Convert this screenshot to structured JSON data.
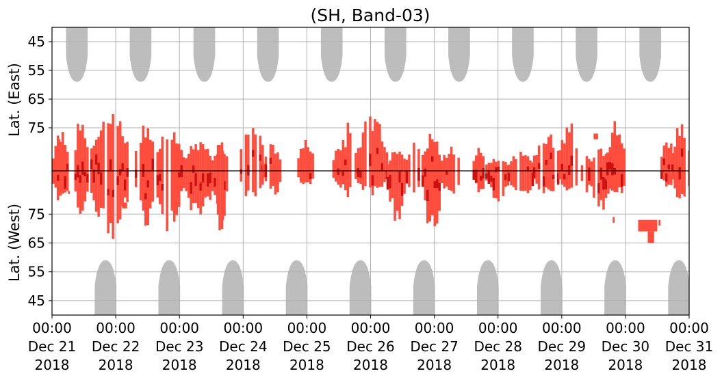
{
  "chart_data": {
    "type": "heatmap",
    "title": "(SH, Band-03)",
    "ylabel_top": "Lat. (East)",
    "ylabel_bottom": "Lat. (West)",
    "y_axis": {
      "lim_east": [
        40,
        90
      ],
      "lim_west": [
        90,
        40
      ],
      "ticks_east": [
        45,
        55,
        65,
        75
      ],
      "ticks_west": [
        75,
        65,
        55,
        45
      ]
    },
    "x_axis": {
      "range": [
        "2018-12-21 00:00",
        "2018-12-31 00:00"
      ],
      "tick_labels": [
        {
          "time": "00:00",
          "date": "Dec 21",
          "year": "2018"
        },
        {
          "time": "00:00",
          "date": "Dec 22",
          "year": "2018"
        },
        {
          "time": "00:00",
          "date": "Dec 23",
          "year": "2018"
        },
        {
          "time": "00:00",
          "date": "Dec 24",
          "year": "2018"
        },
        {
          "time": "00:00",
          "date": "Dec 25",
          "year": "2018"
        },
        {
          "time": "00:00",
          "date": "Dec 26",
          "year": "2018"
        },
        {
          "time": "00:00",
          "date": "Dec 27",
          "year": "2018"
        },
        {
          "time": "00:00",
          "date": "Dec 28",
          "year": "2018"
        },
        {
          "time": "00:00",
          "date": "Dec 29",
          "year": "2018"
        },
        {
          "time": "00:00",
          "date": "Dec 30",
          "year": "2018"
        },
        {
          "time": "00:00",
          "date": "Dec 31",
          "year": "2018"
        }
      ]
    },
    "grid": true,
    "colors": {
      "daylight": "#bdbdbd",
      "echo_weak": "#ff4d3d",
      "echo_strong": "#cc1010",
      "grid": "#b0b0b0",
      "frame": "#000000"
    },
    "daylight_east": [
      {
        "center_day": 0.39,
        "half_width_days": 0.17,
        "edge_lat": 59
      },
      {
        "center_day": 1.39,
        "half_width_days": 0.17,
        "edge_lat": 59
      },
      {
        "center_day": 2.39,
        "half_width_days": 0.17,
        "edge_lat": 59
      },
      {
        "center_day": 3.39,
        "half_width_days": 0.17,
        "edge_lat": 59
      },
      {
        "center_day": 4.39,
        "half_width_days": 0.17,
        "edge_lat": 59
      },
      {
        "center_day": 5.39,
        "half_width_days": 0.17,
        "edge_lat": 59
      },
      {
        "center_day": 6.39,
        "half_width_days": 0.17,
        "edge_lat": 59
      },
      {
        "center_day": 7.39,
        "half_width_days": 0.17,
        "edge_lat": 59
      },
      {
        "center_day": 8.39,
        "half_width_days": 0.17,
        "edge_lat": 59
      },
      {
        "center_day": 9.39,
        "half_width_days": 0.17,
        "edge_lat": 59
      }
    ],
    "daylight_west": [
      {
        "center_day": 0.84,
        "half_width_days": 0.17,
        "edge_lat": 59
      },
      {
        "center_day": 1.84,
        "half_width_days": 0.17,
        "edge_lat": 59
      },
      {
        "center_day": 2.84,
        "half_width_days": 0.17,
        "edge_lat": 59
      },
      {
        "center_day": 3.84,
        "half_width_days": 0.17,
        "edge_lat": 59
      },
      {
        "center_day": 4.84,
        "half_width_days": 0.17,
        "edge_lat": 59
      },
      {
        "center_day": 5.84,
        "half_width_days": 0.17,
        "edge_lat": 59
      },
      {
        "center_day": 6.84,
        "half_width_days": 0.17,
        "edge_lat": 59
      },
      {
        "center_day": 7.84,
        "half_width_days": 0.17,
        "edge_lat": 59
      },
      {
        "center_day": 8.84,
        "half_width_days": 0.17,
        "edge_lat": 59
      },
      {
        "center_day": 9.84,
        "half_width_days": 0.17,
        "edge_lat": 59
      }
    ],
    "echo_clusters": [
      {
        "start_day": 0.0,
        "end_day": 0.25,
        "east_max_lat": 76,
        "west_max_lat": 78,
        "intensity": 0.4
      },
      {
        "start_day": 0.35,
        "end_day": 0.55,
        "east_max_lat": 67,
        "west_max_lat": 72,
        "intensity": 0.6
      },
      {
        "start_day": 0.6,
        "end_day": 1.2,
        "east_max_lat": 69,
        "west_max_lat": 67,
        "intensity": 0.9
      },
      {
        "start_day": 1.3,
        "end_day": 1.6,
        "east_max_lat": 72,
        "west_max_lat": 71,
        "intensity": 0.6
      },
      {
        "start_day": 1.6,
        "end_day": 2.05,
        "east_max_lat": 76,
        "west_max_lat": 69,
        "intensity": 0.8
      },
      {
        "start_day": 2.05,
        "end_day": 2.5,
        "east_max_lat": 79,
        "west_max_lat": 72,
        "intensity": 0.7
      },
      {
        "start_day": 2.5,
        "end_day": 2.75,
        "east_max_lat": 80,
        "west_max_lat": 70,
        "intensity": 0.5
      },
      {
        "start_day": 2.55,
        "end_day": 2.7,
        "east_max_lat": 80,
        "west_max_lat": 66,
        "intensity": 0.4
      },
      {
        "start_day": 2.95,
        "end_day": 3.3,
        "east_max_lat": 69,
        "west_max_lat": 79,
        "intensity": 0.6
      },
      {
        "start_day": 3.3,
        "end_day": 3.6,
        "east_max_lat": 81,
        "west_max_lat": 84,
        "intensity": 0.3
      },
      {
        "start_day": 3.45,
        "end_day": 3.55,
        "east_max_lat": 88,
        "west_max_lat": 79,
        "intensity": 0.3
      },
      {
        "start_day": 3.85,
        "end_day": 4.1,
        "east_max_lat": 77,
        "west_max_lat": 85,
        "intensity": 0.3
      },
      {
        "start_day": 4.4,
        "end_day": 4.65,
        "east_max_lat": 79,
        "west_max_lat": 85,
        "intensity": 0.4
      },
      {
        "start_day": 4.55,
        "end_day": 4.7,
        "east_max_lat": 74,
        "west_max_lat": 80,
        "intensity": 0.4
      },
      {
        "start_day": 4.75,
        "end_day": 5.25,
        "east_max_lat": 70,
        "west_max_lat": 82,
        "intensity": 0.7
      },
      {
        "start_day": 5.25,
        "end_day": 5.55,
        "east_max_lat": 83,
        "west_max_lat": 71,
        "intensity": 0.8
      },
      {
        "start_day": 5.55,
        "end_day": 5.8,
        "east_max_lat": 79,
        "west_max_lat": 82,
        "intensity": 0.4
      },
      {
        "start_day": 5.8,
        "end_day": 6.1,
        "east_max_lat": 76,
        "west_max_lat": 68,
        "intensity": 0.8
      },
      {
        "start_day": 6.1,
        "end_day": 6.4,
        "east_max_lat": 82,
        "west_max_lat": 80,
        "intensity": 0.5
      },
      {
        "start_day": 6.6,
        "end_day": 6.8,
        "east_max_lat": 81,
        "west_max_lat": 83,
        "intensity": 0.5
      },
      {
        "start_day": 6.8,
        "end_day": 7.15,
        "east_max_lat": 86,
        "west_max_lat": 79,
        "intensity": 0.7
      },
      {
        "start_day": 7.15,
        "end_day": 7.55,
        "east_max_lat": 84,
        "west_max_lat": 81,
        "intensity": 0.4
      },
      {
        "start_day": 7.55,
        "end_day": 7.95,
        "east_max_lat": 75,
        "west_max_lat": 82,
        "intensity": 0.7
      },
      {
        "start_day": 7.95,
        "end_day": 8.25,
        "east_max_lat": 72,
        "west_max_lat": 83,
        "intensity": 0.6
      },
      {
        "start_day": 8.3,
        "end_day": 8.45,
        "east_max_lat": 85,
        "west_max_lat": 82,
        "intensity": 0.3
      },
      {
        "start_day": 8.45,
        "end_day": 8.75,
        "east_max_lat": 82,
        "west_max_lat": 74,
        "intensity": 0.5
      },
      {
        "start_day": 8.7,
        "end_day": 9.0,
        "east_max_lat": 71,
        "west_max_lat": 81,
        "intensity": 0.9
      },
      {
        "start_day": 9.55,
        "end_day": 9.75,
        "east_max_lat": 77,
        "west_max_lat": 85,
        "intensity": 0.6
      },
      {
        "start_day": 9.72,
        "end_day": 10.0,
        "east_max_lat": 73,
        "west_max_lat": 80,
        "intensity": 0.7
      }
    ],
    "echo_patches": [
      {
        "start_day": 0.1,
        "end_day": 0.13,
        "side": "east",
        "from_lat": 79,
        "to_lat": 81
      },
      {
        "start_day": 0.25,
        "end_day": 0.28,
        "side": "west",
        "from_lat": 82,
        "to_lat": 83
      },
      {
        "start_day": 1.1,
        "end_day": 1.18,
        "side": "west",
        "from_lat": 77,
        "to_lat": 79
      },
      {
        "start_day": 3.48,
        "end_day": 3.55,
        "side": "east",
        "from_lat": 88,
        "to_lat": 90
      },
      {
        "start_day": 5.35,
        "end_day": 5.42,
        "side": "east",
        "from_lat": 87,
        "to_lat": 88
      },
      {
        "start_day": 8.5,
        "end_day": 8.57,
        "side": "east",
        "from_lat": 77,
        "to_lat": 79
      },
      {
        "start_day": 8.8,
        "end_day": 8.83,
        "side": "west",
        "from_lat": 72,
        "to_lat": 74
      },
      {
        "start_day": 9.2,
        "end_day": 9.5,
        "side": "west",
        "from_lat": 69,
        "to_lat": 73
      },
      {
        "start_day": 9.35,
        "end_day": 9.45,
        "side": "west",
        "from_lat": 65,
        "to_lat": 69
      },
      {
        "start_day": 9.52,
        "end_day": 9.55,
        "side": "west",
        "from_lat": 71,
        "to_lat": 73
      }
    ]
  }
}
